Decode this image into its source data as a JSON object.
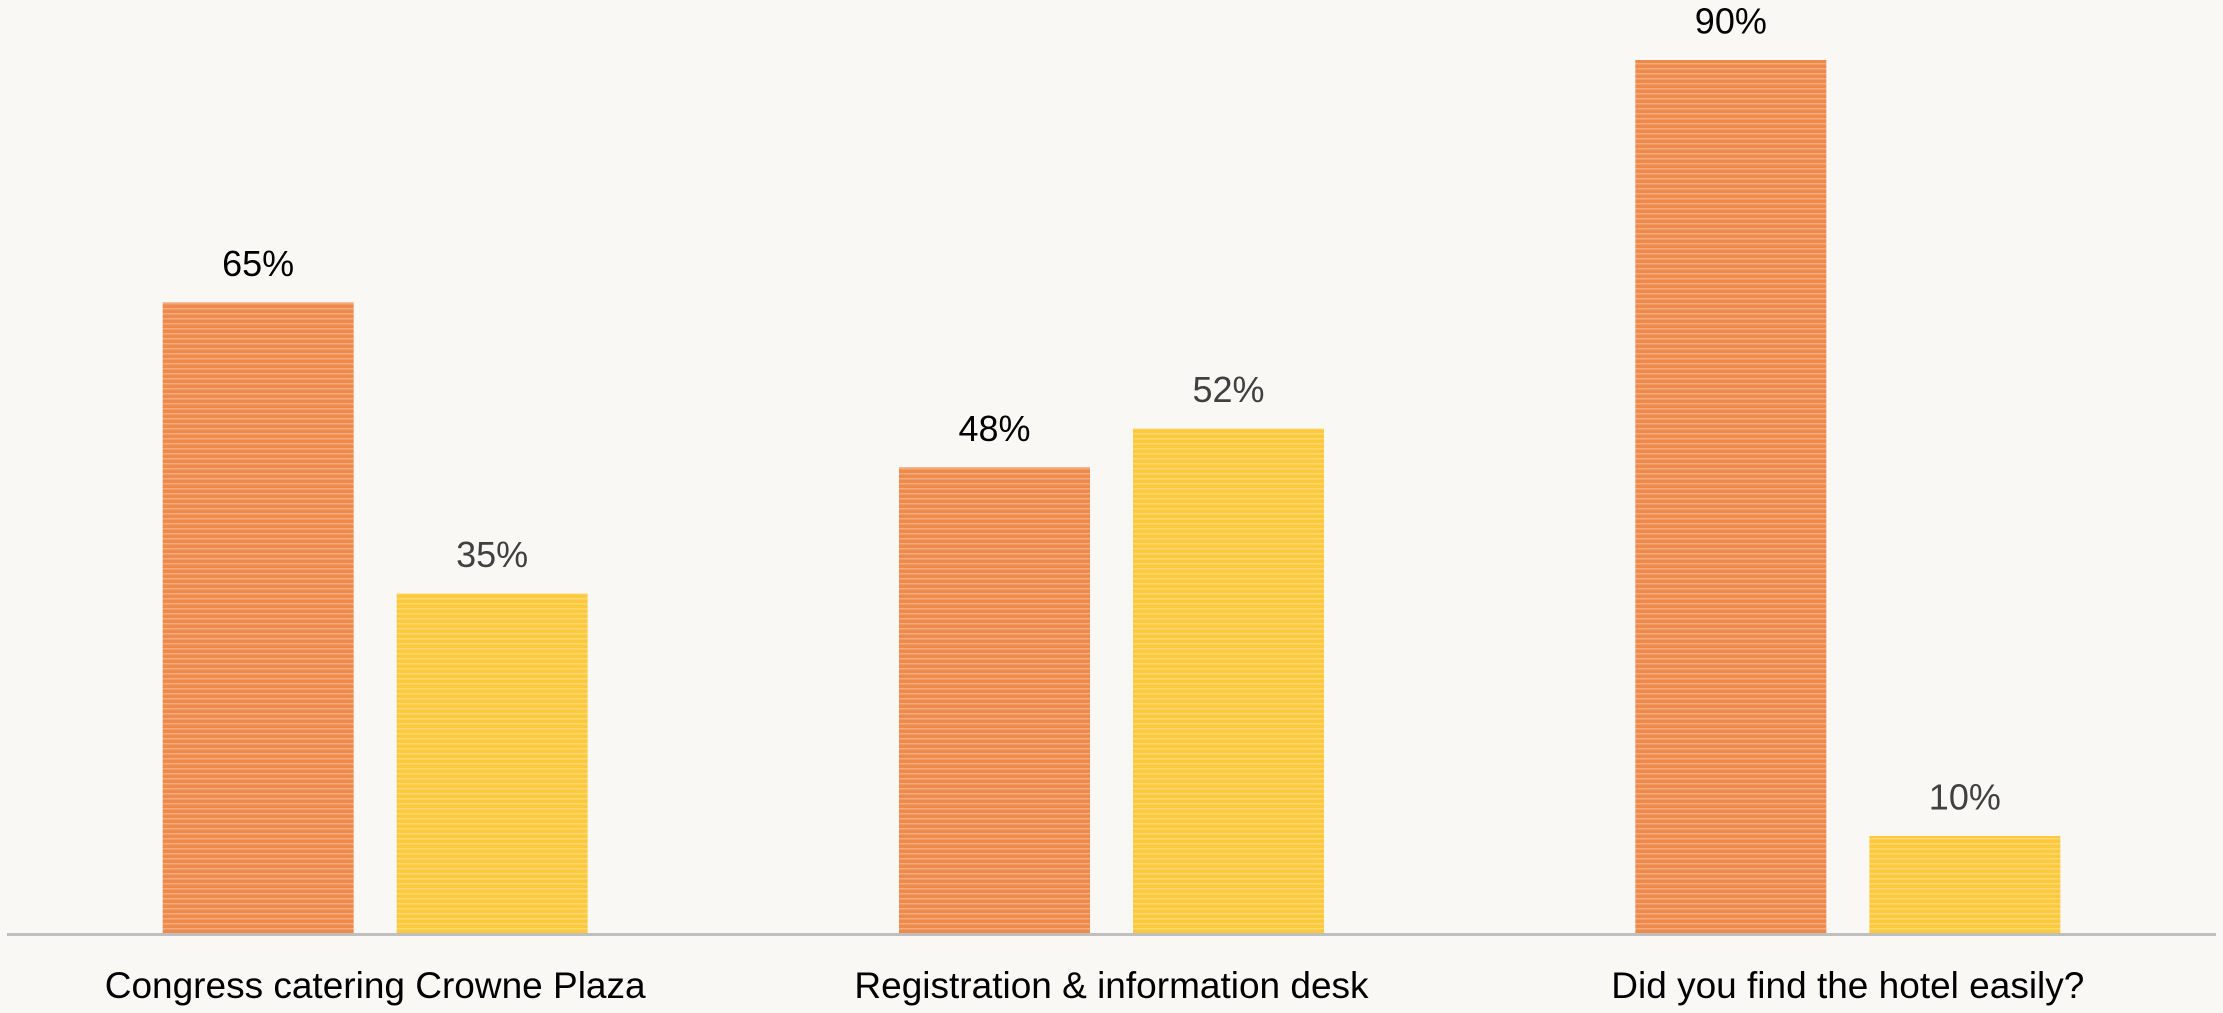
{
  "chart_data": {
    "type": "bar",
    "categories": [
      "Congress catering Crowne Plaza",
      "Registration & information desk",
      "Did you find the hotel easily?"
    ],
    "series": [
      {
        "color": "#ee8a4c",
        "values": [
          65,
          48,
          90
        ],
        "value_labels": [
          "65%",
          "48%",
          "90%"
        ],
        "label_color": "#000000"
      },
      {
        "color": "#fcc93c",
        "values": [
          35,
          52,
          10
        ],
        "value_labels": [
          "35%",
          "52%",
          "10%"
        ],
        "label_color": "#404040"
      }
    ]
  }
}
